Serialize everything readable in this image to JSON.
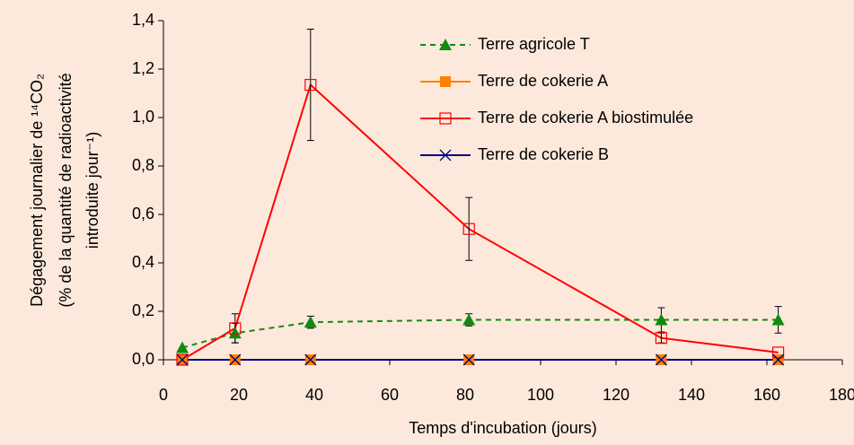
{
  "chart_data": {
    "type": "line",
    "xlabel": "Temps d'incubation (jours)",
    "ylabel": [
      "Dégagement journalier de ¹⁴CO₂",
      "(% de la quantité de radioactivité",
      "introduite jour⁻¹)"
    ],
    "x": [
      5,
      19,
      39,
      81,
      132,
      163
    ],
    "xlim": [
      0,
      180
    ],
    "xticks": [
      0,
      20,
      40,
      60,
      80,
      100,
      120,
      140,
      160,
      180
    ],
    "ylim": [
      0,
      1.4
    ],
    "yticks": [
      {
        "value": 0,
        "label": "0,0"
      },
      {
        "value": 0.2,
        "label": "0,2"
      },
      {
        "value": 0.4,
        "label": "0,4"
      },
      {
        "value": 0.6,
        "label": "0,6"
      },
      {
        "value": 0.8,
        "label": "0,8"
      },
      {
        "value": 1.0,
        "label": "1,0"
      },
      {
        "value": 1.2,
        "label": "1,2"
      },
      {
        "value": 1.4,
        "label": "1,4"
      }
    ],
    "grid": false,
    "legend": "upper right",
    "series": [
      {
        "name": "Terre agricole T",
        "color": "#128a12",
        "marker": "triangle",
        "dashed": true,
        "values": [
          0.05,
          0.11,
          0.155,
          0.165,
          0.165,
          0.165
        ],
        "errors": [
          null,
          0.04,
          0.025,
          0.025,
          0.05,
          0.055
        ]
      },
      {
        "name": "Terre de cokerie A",
        "color": "#ff7f00",
        "marker": "square",
        "values": [
          0,
          0,
          0,
          0,
          0,
          0
        ]
      },
      {
        "name": "Terre de cokerie A biostimulée",
        "color": "#ff0000",
        "marker": "open-square",
        "values": [
          0,
          0.13,
          1.135,
          0.54,
          0.09,
          0.03
        ],
        "errors": [
          null,
          0.06,
          0.23,
          0.13,
          0.02,
          null
        ]
      },
      {
        "name": "Terre de cokerie B",
        "color": "#000080",
        "marker": "x",
        "values": [
          0,
          0,
          0,
          0,
          0,
          0
        ]
      }
    ]
  }
}
